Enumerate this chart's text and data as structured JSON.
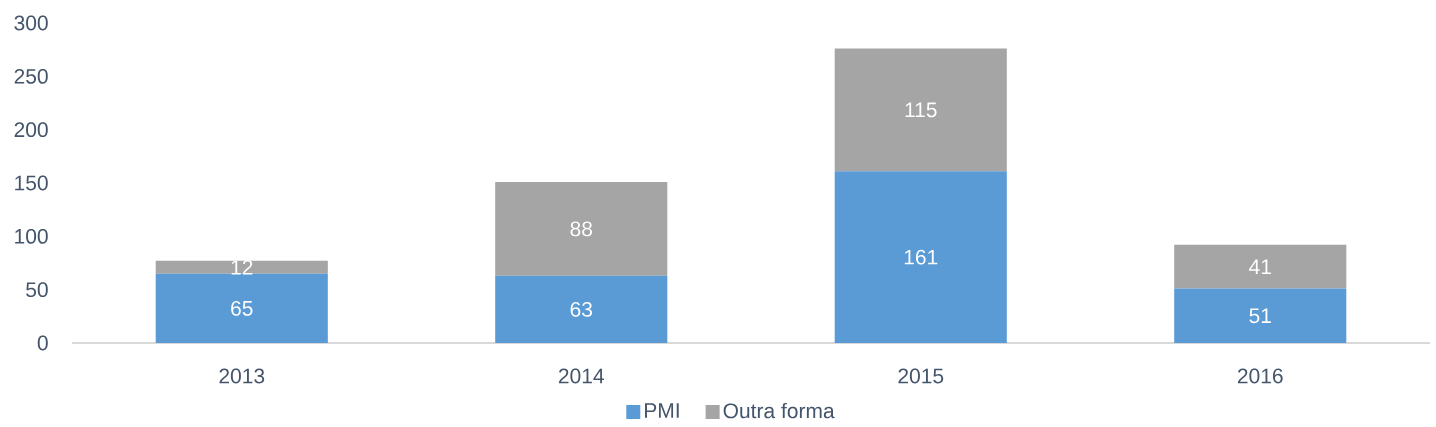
{
  "chart_data": {
    "type": "bar",
    "stacked": true,
    "categories": [
      "2013",
      "2014",
      "2015",
      "2016"
    ],
    "series": [
      {
        "name": "PMI",
        "color": "#5b9bd5",
        "values": [
          65,
          63,
          161,
          51
        ]
      },
      {
        "name": "Outra forma",
        "color": "#a5a5a5",
        "values": [
          12,
          88,
          115,
          41
        ]
      }
    ],
    "ylim": [
      0,
      300
    ],
    "yticks": [
      0,
      50,
      100,
      150,
      200,
      250,
      300
    ],
    "grid": false,
    "legend": "bottom",
    "data_labels": true
  }
}
